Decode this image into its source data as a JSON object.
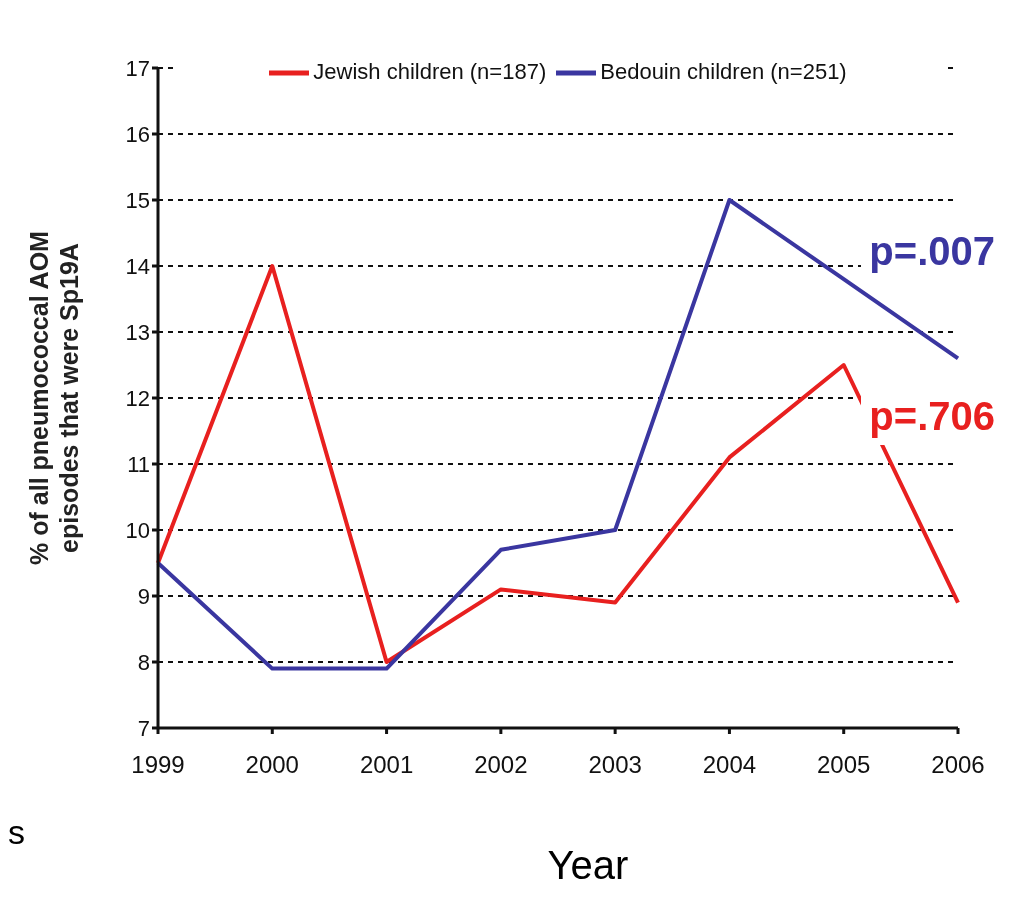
{
  "chart_data": {
    "type": "line",
    "xlabel": "Year",
    "ylabel": "% of all pneumococcal AOM episodes that were Sp19A",
    "categories": [
      "1999",
      "2000",
      "2001",
      "2002",
      "2003",
      "2004",
      "2005",
      "2006"
    ],
    "series": [
      {
        "name": "Jewish children (n=187)",
        "color": "#e8201f",
        "values": [
          9.5,
          14,
          8,
          9.1,
          8.9,
          11.1,
          12.5,
          8.9
        ]
      },
      {
        "name": "Bedouin children (n=251)",
        "color": "#3a36a0",
        "values": [
          9.5,
          7.9,
          7.9,
          9.7,
          10,
          15,
          13.8,
          12.6
        ]
      }
    ],
    "ylim": [
      7,
      17
    ],
    "yticks": [
      7,
      8,
      9,
      10,
      11,
      12,
      13,
      14,
      15,
      16,
      17
    ],
    "grid": "y",
    "legend": "top",
    "marker": "none",
    "line_style": "solid",
    "annotations": [
      "p=.007",
      "p=.706",
      "s"
    ]
  }
}
